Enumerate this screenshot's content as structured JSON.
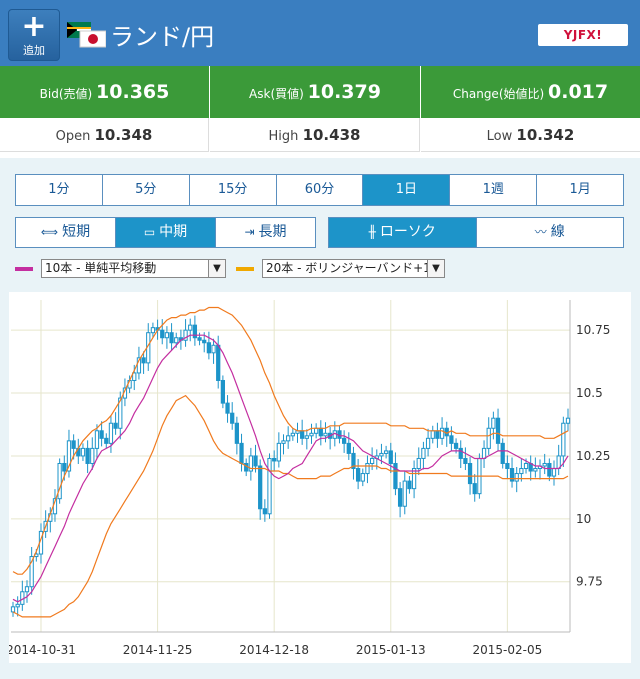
{
  "header": {
    "add_label": "追加",
    "title": "ランド/円",
    "logo": "YJFX!"
  },
  "quotes": {
    "bid_label": "Bid(売値)",
    "bid_value": "10.365",
    "ask_label": "Ask(買値)",
    "ask_value": "10.379",
    "change_label": "Change(始値比)",
    "change_value": "0.017"
  },
  "ohl": {
    "open_label": "Open",
    "open_value": "10.348",
    "high_label": "High",
    "high_value": "10.438",
    "low_label": "Low",
    "low_value": "10.342"
  },
  "periods": [
    "1分",
    "5分",
    "15分",
    "60分",
    "1日",
    "1週",
    "1月"
  ],
  "selected_period": "1日",
  "terms": [
    "短期",
    "中期",
    "長期"
  ],
  "selected_term": "中期",
  "chart_types": [
    "ローソク",
    "線"
  ],
  "selected_chart_type": "ローソク",
  "indicators": {
    "ma": {
      "label": "10本 - 単純平均移動",
      "color": "#c42ea0"
    },
    "bb": {
      "label": "20本 - ボリンジャーバンド+1",
      "color": "#f0a800"
    }
  },
  "colors": {
    "candle": "#1d94c9",
    "ma": "#c42ea0",
    "band": "#f07a1e",
    "grid": "#e6e6cc"
  },
  "chart_data": {
    "type": "candlestick",
    "ylim": [
      9.55,
      10.87
    ],
    "yticks": [
      9.75,
      10,
      10.25,
      10.5,
      10.75
    ],
    "ytick_labels": [
      "9.75",
      "10",
      "10.25",
      "10.5",
      "10.75"
    ],
    "xtick_labels": [
      "2014-10-31",
      "2014-11-25",
      "2014-12-18",
      "2015-01-13",
      "2015-02-05"
    ],
    "xtick_index": [
      6,
      31,
      56,
      81,
      106
    ],
    "close": [
      9.65,
      9.66,
      9.71,
      9.73,
      9.85,
      9.86,
      9.95,
      9.99,
      10.02,
      10.08,
      10.22,
      10.19,
      10.31,
      10.28,
      10.25,
      10.28,
      10.22,
      10.28,
      10.35,
      10.32,
      10.3,
      10.38,
      10.36,
      10.48,
      10.52,
      10.55,
      10.58,
      10.64,
      10.62,
      10.74,
      10.76,
      10.75,
      10.72,
      10.74,
      10.7,
      10.72,
      10.71,
      10.75,
      10.77,
      10.72,
      10.71,
      10.7,
      10.66,
      10.69,
      10.55,
      10.46,
      10.42,
      10.38,
      10.3,
      10.22,
      10.19,
      10.25,
      10.21,
      10.04,
      10.02,
      10.24,
      10.23,
      10.3,
      10.31,
      10.33,
      10.34,
      10.35,
      10.32,
      10.33,
      10.34,
      10.36,
      10.33,
      10.34,
      10.32,
      10.35,
      10.32,
      10.3,
      10.26,
      10.2,
      10.15,
      10.18,
      10.22,
      10.24,
      10.25,
      10.26,
      10.27,
      10.22,
      10.12,
      10.05,
      10.15,
      10.12,
      10.2,
      10.24,
      10.28,
      10.32,
      10.35,
      10.32,
      10.36,
      10.33,
      10.3,
      10.28,
      10.24,
      10.22,
      10.14,
      10.1,
      10.24,
      10.28,
      10.36,
      10.4,
      10.3,
      10.22,
      10.2,
      10.15,
      10.18,
      10.2,
      10.22,
      10.19,
      10.2,
      10.21,
      10.22,
      10.17,
      10.2,
      10.25,
      10.38,
      10.4
    ],
    "ma10": [
      9.68,
      9.67,
      9.68,
      9.69,
      9.71,
      9.74,
      9.77,
      9.81,
      9.85,
      9.89,
      9.93,
      9.97,
      10.02,
      10.06,
      10.1,
      10.14,
      10.17,
      10.2,
      10.24,
      10.27,
      10.28,
      10.29,
      10.31,
      10.33,
      10.35,
      10.38,
      10.42,
      10.45,
      10.48,
      10.52,
      10.56,
      10.6,
      10.63,
      10.65,
      10.67,
      10.69,
      10.71,
      10.72,
      10.73,
      10.73,
      10.73,
      10.73,
      10.72,
      10.71,
      10.69,
      10.66,
      10.62,
      10.58,
      10.53,
      10.48,
      10.43,
      10.38,
      10.33,
      10.27,
      10.22,
      10.19,
      10.17,
      10.16,
      10.17,
      10.18,
      10.2,
      10.21,
      10.22,
      10.25,
      10.28,
      10.31,
      10.32,
      10.32,
      10.33,
      10.34,
      10.33,
      10.33,
      10.32,
      10.31,
      10.29,
      10.27,
      10.26,
      10.25,
      10.24,
      10.23,
      10.22,
      10.21,
      10.2,
      10.19,
      10.19,
      10.19,
      10.19,
      10.19,
      10.2,
      10.2,
      10.21,
      10.23,
      10.25,
      10.26,
      10.27,
      10.27,
      10.27,
      10.26,
      10.25,
      10.24,
      10.24,
      10.24,
      10.25,
      10.26,
      10.27,
      10.27,
      10.27,
      10.26,
      10.25,
      10.24,
      10.23,
      10.22,
      10.21,
      10.21,
      10.2,
      10.2,
      10.2,
      10.2,
      10.22,
      10.25
    ],
    "bb_upper": [
      9.79,
      9.78,
      9.78,
      9.8,
      9.83,
      9.87,
      9.92,
      9.97,
      10.02,
      10.07,
      10.12,
      10.17,
      10.21,
      10.25,
      10.28,
      10.31,
      10.33,
      10.35,
      10.36,
      10.38,
      10.39,
      10.41,
      10.44,
      10.47,
      10.51,
      10.55,
      10.59,
      10.63,
      10.66,
      10.69,
      10.72,
      10.75,
      10.77,
      10.79,
      10.8,
      10.8,
      10.81,
      10.81,
      10.82,
      10.82,
      10.83,
      10.83,
      10.84,
      10.84,
      10.84,
      10.83,
      10.82,
      10.81,
      10.79,
      10.77,
      10.74,
      10.71,
      10.67,
      10.63,
      10.58,
      10.54,
      10.49,
      10.45,
      10.41,
      10.38,
      10.36,
      10.35,
      10.35,
      10.35,
      10.36,
      10.36,
      10.36,
      10.36,
      10.37,
      10.37,
      10.37,
      10.38,
      10.38,
      10.38,
      10.38,
      10.38,
      10.38,
      10.38,
      10.38,
      10.38,
      10.38,
      10.37,
      10.37,
      10.37,
      10.37,
      10.36,
      10.36,
      10.36,
      10.36,
      10.35,
      10.35,
      10.35,
      10.35,
      10.34,
      10.35,
      10.34,
      10.34,
      10.34,
      10.33,
      10.33,
      10.33,
      10.33,
      10.33,
      10.34,
      10.34,
      10.33,
      10.33,
      10.33,
      10.33,
      10.33,
      10.33,
      10.33,
      10.33,
      10.33,
      10.32,
      10.32,
      10.32,
      10.33,
      10.34,
      10.35
    ],
    "bb_lower": [
      9.63,
      9.62,
      9.61,
      9.61,
      9.61,
      9.61,
      9.61,
      9.61,
      9.61,
      9.62,
      9.63,
      9.64,
      9.66,
      9.67,
      9.69,
      9.72,
      9.75,
      9.79,
      9.84,
      9.89,
      9.94,
      9.98,
      10.01,
      10.04,
      10.07,
      10.1,
      10.13,
      10.16,
      10.19,
      10.23,
      10.27,
      10.32,
      10.37,
      10.41,
      10.44,
      10.47,
      10.48,
      10.49,
      10.47,
      10.45,
      10.42,
      10.39,
      10.35,
      10.31,
      10.28,
      10.26,
      10.25,
      10.24,
      10.23,
      10.22,
      10.21,
      10.2,
      10.2,
      10.2,
      10.2,
      10.19,
      10.19,
      10.19,
      10.18,
      10.18,
      10.17,
      10.16,
      10.16,
      10.16,
      10.16,
      10.16,
      10.17,
      10.17,
      10.17,
      10.18,
      10.19,
      10.2,
      10.2,
      10.21,
      10.21,
      10.21,
      10.21,
      10.21,
      10.21,
      10.2,
      10.2,
      10.19,
      10.19,
      10.19,
      10.19,
      10.18,
      10.18,
      10.18,
      10.18,
      10.18,
      10.18,
      10.18,
      10.18,
      10.18,
      10.17,
      10.17,
      10.17,
      10.17,
      10.17,
      10.17,
      10.17,
      10.17,
      10.17,
      10.17,
      10.17,
      10.16,
      10.16,
      10.16,
      10.16,
      10.16,
      10.16,
      10.16,
      10.16,
      10.16,
      10.16,
      10.16,
      10.16,
      10.16,
      10.16,
      10.17
    ]
  }
}
